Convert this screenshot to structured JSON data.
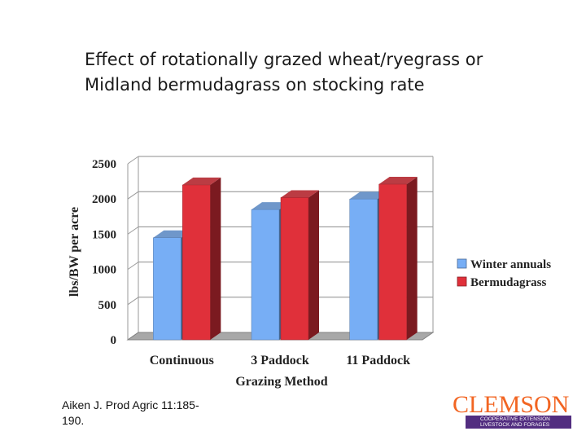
{
  "slide": {
    "title_line1": "Effect of rotationally grazed wheat/ryegrass or",
    "title_line2": "Midland bermudagrass on stocking rate",
    "citation_line1": "Aiken J. Prod Agric 11:185-",
    "citation_line2": "190."
  },
  "logo": {
    "name": "CLEMSON",
    "line1": "COOPERATIVE EXTENSION",
    "line2": "LIVESTOCK AND FORAGES",
    "colors": {
      "orange": "#f26522",
      "purple": "#522d80"
    }
  },
  "chart_data": {
    "type": "bar",
    "title": "",
    "xlabel": "Grazing Method",
    "ylabel": "lbs/BW per acre",
    "categories": [
      "Continuous",
      "3 Paddock",
      "11 Paddock"
    ],
    "series": [
      {
        "name": "Winter annuals",
        "values": [
          1450,
          1850,
          2000
        ],
        "color": "#77aef5"
      },
      {
        "name": "Bermudagrass",
        "values": [
          2200,
          2020,
          2210
        ],
        "color": "#e0303a"
      }
    ],
    "ylim": [
      0,
      2500
    ],
    "yticks": [
      "0",
      "500",
      "1000",
      "1500",
      "2000",
      "2500"
    ],
    "grid": true,
    "legend": "right"
  }
}
